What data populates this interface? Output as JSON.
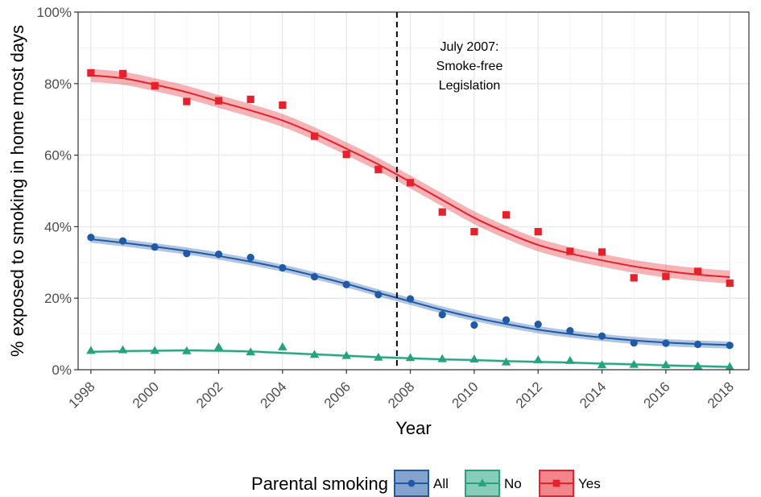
{
  "chart_data": {
    "type": "scatter",
    "title": "",
    "xlabel": "Year",
    "ylabel": "% exposed to smoking in home most days",
    "xlim": [
      1997.6,
      2018.6
    ],
    "ylim": [
      0,
      100
    ],
    "x_ticks": [
      1998,
      2000,
      2002,
      2004,
      2006,
      2008,
      2010,
      2012,
      2014,
      2016,
      2018
    ],
    "y_ticks": [
      0,
      20,
      40,
      60,
      80,
      100
    ],
    "y_tick_labels": [
      "0%",
      "20%",
      "40%",
      "60%",
      "80%",
      "100%"
    ],
    "grid": true,
    "legend": {
      "title": "Parental smoking",
      "position": "bottom"
    },
    "annotation": {
      "x": 2007.58,
      "lines": [
        "July 2007:",
        "Smoke-free",
        "Legislation"
      ]
    },
    "series": [
      {
        "name": "All",
        "color": "#1f5aa6",
        "marker": "circle",
        "x": [
          1998,
          1999,
          2000,
          2001,
          2002,
          2003,
          2004,
          2005,
          2006,
          2007,
          2008,
          2009,
          2010,
          2011,
          2012,
          2013,
          2014,
          2015,
          2016,
          2017,
          2018
        ],
        "values": [
          37.0,
          36.0,
          34.3,
          32.5,
          32.3,
          31.4,
          28.5,
          26.0,
          23.8,
          21.0,
          19.8,
          15.4,
          12.5,
          13.9,
          12.7,
          10.9,
          9.4,
          7.5,
          7.4,
          7.1,
          6.8
        ],
        "fit_x": [
          1998,
          1999,
          2000,
          2001,
          2002,
          2003,
          2004,
          2005,
          2006,
          2007,
          2008,
          2009,
          2010,
          2011,
          2012,
          2013,
          2014,
          2015,
          2016,
          2017,
          2018
        ],
        "fit": [
          36.5,
          35.5,
          34.4,
          33.2,
          31.8,
          30.2,
          28.4,
          26.3,
          24.0,
          21.5,
          19.1,
          16.7,
          14.6,
          12.8,
          11.2,
          10.0,
          9.0,
          8.2,
          7.6,
          7.2,
          6.9
        ],
        "fit_band": 1.0
      },
      {
        "name": "No",
        "color": "#24a37f",
        "marker": "triangle",
        "x": [
          1998,
          1999,
          2000,
          2001,
          2002,
          2003,
          2004,
          2005,
          2006,
          2007,
          2008,
          2009,
          2010,
          2011,
          2012,
          2013,
          2014,
          2015,
          2016,
          2017,
          2018
        ],
        "values": [
          5.3,
          5.5,
          5.3,
          5.2,
          6.3,
          4.9,
          6.3,
          4.2,
          3.9,
          3.4,
          3.3,
          3.0,
          2.9,
          2.1,
          2.7,
          2.5,
          1.3,
          1.4,
          1.3,
          1.0,
          0.8
        ],
        "fit_x": [
          1998,
          1999,
          2000,
          2001,
          2002,
          2003,
          2004,
          2005,
          2006,
          2007,
          2008,
          2009,
          2010,
          2011,
          2012,
          2013,
          2014,
          2015,
          2016,
          2017,
          2018
        ],
        "fit": [
          5.0,
          5.2,
          5.3,
          5.4,
          5.3,
          5.1,
          4.7,
          4.3,
          3.9,
          3.5,
          3.2,
          2.9,
          2.7,
          2.4,
          2.2,
          2.0,
          1.7,
          1.5,
          1.2,
          1.0,
          0.8
        ],
        "fit_band": 0.4
      },
      {
        "name": "Yes",
        "color": "#e5212b",
        "marker": "square",
        "x": [
          1998,
          1999,
          2000,
          2001,
          2002,
          2003,
          2004,
          2005,
          2006,
          2007,
          2008,
          2009,
          2010,
          2011,
          2012,
          2013,
          2014,
          2015,
          2016,
          2017,
          2018
        ],
        "values": [
          83.0,
          82.8,
          79.4,
          75.0,
          75.2,
          75.6,
          74.0,
          65.3,
          60.2,
          56.0,
          52.3,
          44.1,
          38.6,
          43.3,
          38.6,
          33.1,
          32.9,
          25.7,
          26.1,
          27.5,
          24.2
        ],
        "fit_x": [
          1998,
          1999,
          2000,
          2001,
          2002,
          2003,
          2004,
          2005,
          2006,
          2007,
          2008,
          2009,
          2010,
          2011,
          2012,
          2013,
          2014,
          2015,
          2016,
          2017,
          2018
        ],
        "fit": [
          82.3,
          81.5,
          79.7,
          77.6,
          75.0,
          72.5,
          69.7,
          66.0,
          61.8,
          57.4,
          52.5,
          47.5,
          42.5,
          38.4,
          34.9,
          32.5,
          30.6,
          28.9,
          27.6,
          26.6,
          25.9
        ],
        "fit_band": 1.8
      }
    ]
  }
}
